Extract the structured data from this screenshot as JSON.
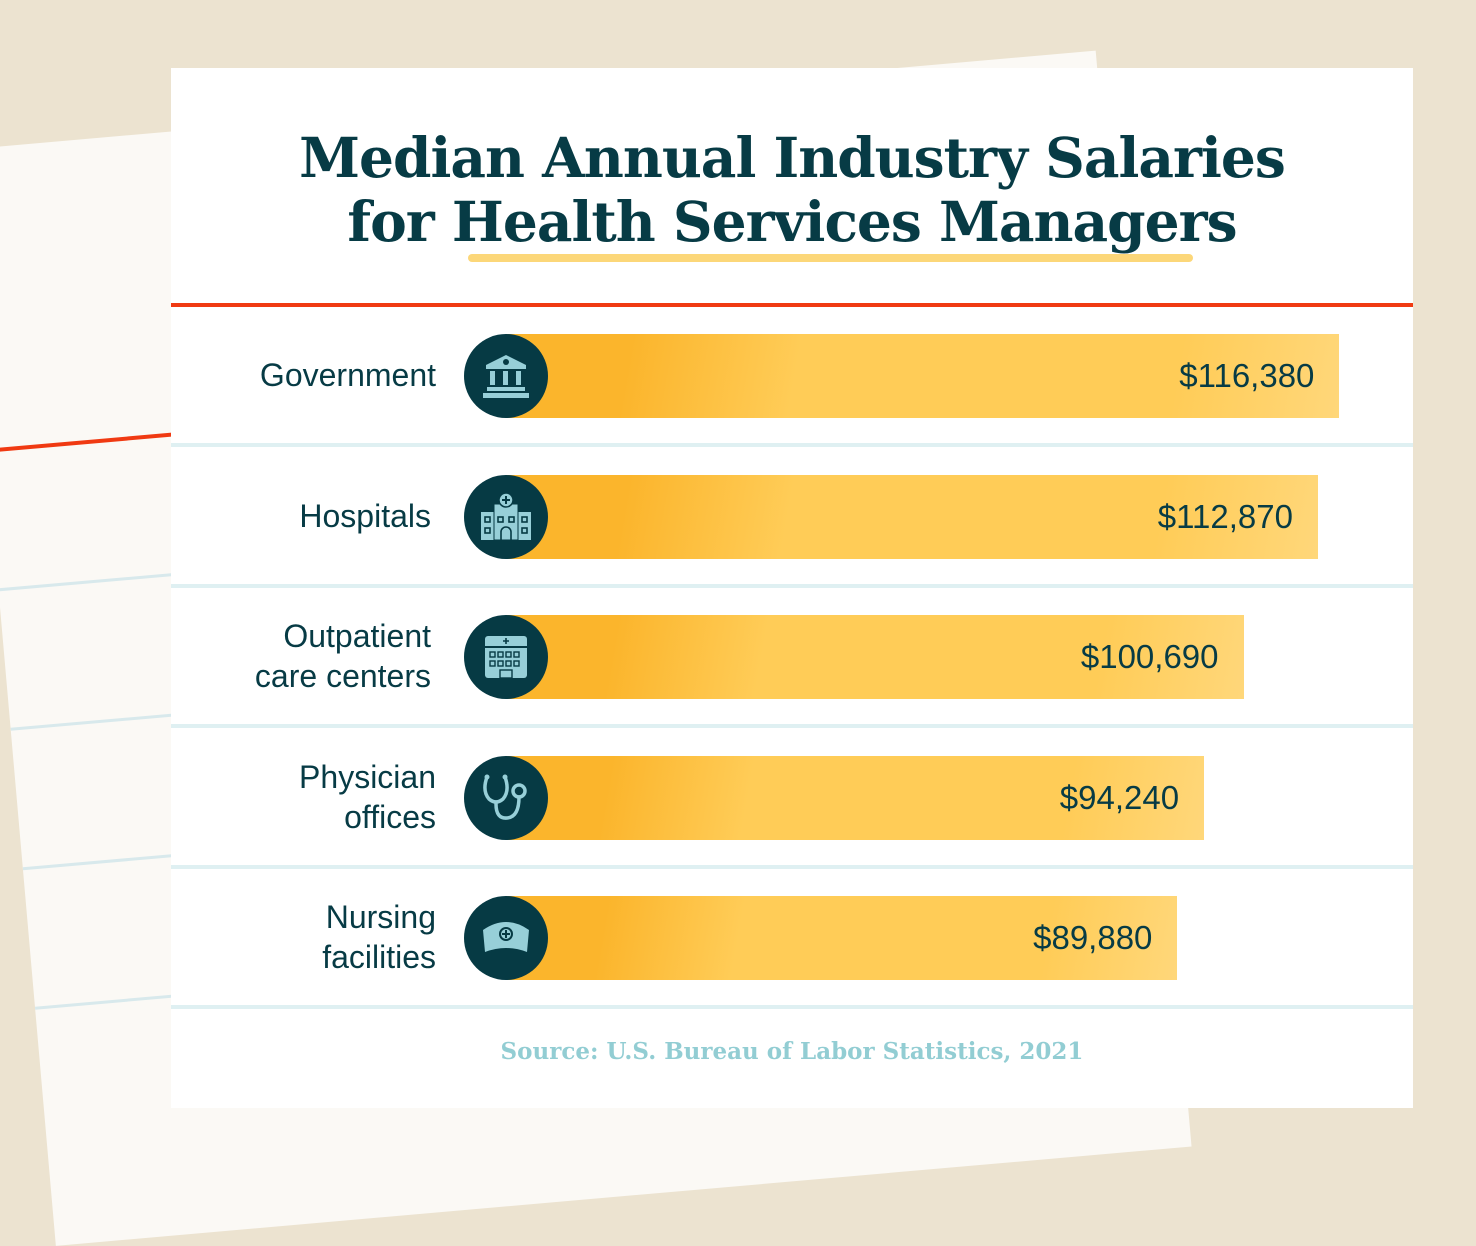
{
  "chart_data": {
    "type": "bar",
    "orientation": "horizontal",
    "title": "Median Annual Industry Salaries for Health Services Managers",
    "categories": [
      "Government",
      "Hospitals",
      "Outpatient care centers",
      "Physician offices",
      "Nursing facilities"
    ],
    "values": [
      116380,
      112870,
      100690,
      94240,
      89880
    ],
    "value_labels": [
      "$116,380",
      "$112,870",
      "$100,690",
      "$94,240",
      "$89,880"
    ],
    "icons": [
      "government-building-icon",
      "hospital-icon",
      "clinic-icon",
      "stethoscope-icon",
      "nurse-cap-icon"
    ],
    "source": "Source: U.S. Bureau of Labor Statistics, 2021",
    "colors": {
      "bar": "#ffcc57",
      "bar_dark": "#fbb52c",
      "text": "#073b45",
      "icon_bg": "#063a44",
      "icon_fg": "#97cfd8",
      "accent_rule": "#f03a12"
    }
  },
  "title_line1": "Median Annual Industry Salaries",
  "title_line2": "for Health Services Managers",
  "labels": [
    [
      "Government"
    ],
    [
      "Hospitals"
    ],
    [
      "Outpatient",
      "care centers"
    ],
    [
      "Physician",
      "offices"
    ],
    [
      "Nursing",
      "facilities"
    ]
  ]
}
